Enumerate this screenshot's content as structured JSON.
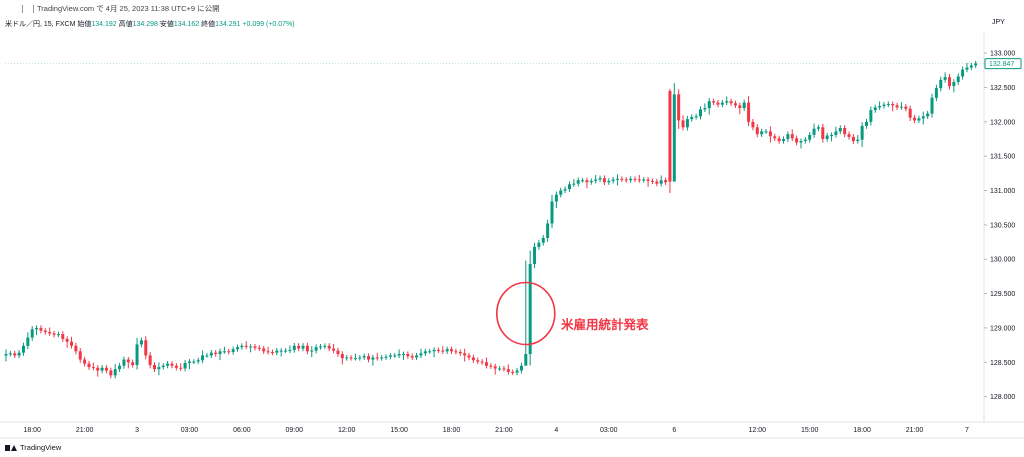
{
  "header": {
    "publish_text": "TradingView.com で 4月 25, 2023 11:38 UTC+9 に公開"
  },
  "legend": {
    "symbol": "米ドル／円, 15, FXCM",
    "open_label": "始値",
    "open": "134.192",
    "high_label": "高値",
    "high": "134.298",
    "low_label": "安値",
    "low": "134.162",
    "close_label": "終値",
    "close": "134.291",
    "change": "+0.099 (+0.07%)"
  },
  "currency": "JPY",
  "branding": {
    "name": "TradingView"
  },
  "annotation": {
    "text": "米雇用統計発表"
  },
  "colors": {
    "up": "#089981",
    "down": "#f23645",
    "annotation": "#f23645",
    "axis_text": "#131722",
    "grid": "#f0f3fa"
  },
  "chart_data": {
    "type": "candlestick",
    "title": "",
    "x_ticks": [
      "18:00",
      "21:00",
      "3",
      "03:00",
      "06:00",
      "09:00",
      "12:00",
      "15:00",
      "18:00",
      "21:00",
      "4",
      "03:00",
      "6",
      "12:00",
      "15:00",
      "18:00",
      "21:00",
      "7"
    ],
    "x_tick_bar_index": [
      6,
      18,
      30,
      42,
      54,
      66,
      78,
      90,
      102,
      114,
      126,
      138,
      153,
      172,
      184,
      196,
      208,
      220
    ],
    "y_ticks": [
      "128.000",
      "128.500",
      "129.000",
      "129.500",
      "130.000",
      "130.500",
      "131.000",
      "131.500",
      "132.000",
      "132.500",
      "133.000"
    ],
    "y_tick_values": [
      128.0,
      128.5,
      129.0,
      129.5,
      130.0,
      130.5,
      131.0,
      131.5,
      132.0,
      132.5,
      133.0
    ],
    "ylim": [
      127.66,
      133.22
    ],
    "last_price_label": "132.847",
    "last_price": 132.847,
    "grid": false,
    "close_series": [
      128.62,
      128.63,
      128.6,
      128.64,
      128.74,
      128.86,
      128.98,
      129.0,
      128.96,
      128.94,
      128.92,
      128.9,
      128.91,
      128.84,
      128.8,
      128.74,
      128.66,
      128.54,
      128.48,
      128.43,
      128.42,
      128.38,
      128.42,
      128.38,
      128.31,
      128.4,
      128.45,
      128.54,
      128.5,
      128.46,
      128.76,
      128.82,
      128.6,
      128.46,
      128.4,
      128.43,
      128.45,
      128.48,
      128.45,
      128.42,
      128.41,
      128.49,
      128.51,
      128.51,
      128.53,
      128.6,
      128.6,
      128.64,
      128.62,
      128.66,
      128.66,
      128.65,
      128.69,
      128.72,
      128.74,
      128.73,
      128.73,
      128.71,
      128.7,
      128.66,
      128.65,
      128.64,
      128.67,
      128.67,
      128.67,
      128.68,
      128.74,
      128.7,
      128.74,
      128.66,
      128.67,
      128.72,
      128.73,
      128.74,
      128.7,
      128.67,
      128.62,
      128.56,
      128.57,
      128.56,
      128.56,
      128.57,
      128.59,
      128.54,
      128.57,
      128.56,
      128.57,
      128.58,
      128.6,
      128.6,
      128.62,
      128.62,
      128.59,
      128.57,
      128.6,
      128.63,
      128.66,
      128.66,
      128.68,
      128.67,
      128.66,
      128.69,
      128.66,
      128.65,
      128.63,
      128.6,
      128.57,
      128.53,
      128.51,
      128.5,
      128.45,
      128.44,
      128.41,
      128.41,
      128.4,
      128.36,
      128.35,
      128.38,
      128.45,
      128.62,
      129.93,
      130.18,
      130.24,
      130.31,
      130.52,
      130.84,
      130.94,
      131.0,
      131.02,
      131.09,
      131.1,
      131.15,
      131.15,
      131.12,
      131.14,
      131.16,
      131.18,
      131.12,
      131.14,
      131.16,
      131.17,
      131.16,
      131.15,
      131.17,
      131.16,
      131.15,
      131.16,
      131.14,
      131.13,
      131.1,
      131.15,
      131.12,
      131.13,
      132.4,
      132.02,
      131.92,
      132.04,
      132.07,
      132.08,
      132.18,
      132.2,
      132.3,
      132.28,
      132.25,
      132.28,
      132.3,
      132.27,
      132.24,
      132.2,
      132.28,
      132.0,
      131.92,
      131.82,
      131.86,
      131.86,
      131.79,
      131.76,
      131.72,
      131.75,
      131.82,
      131.76,
      131.7,
      131.72,
      131.74,
      131.81,
      131.9,
      131.92,
      131.75,
      131.8,
      131.81,
      131.86,
      131.91,
      131.82,
      131.78,
      131.72,
      131.74,
      131.94,
      132.0,
      132.17,
      132.21,
      132.23,
      132.25,
      132.26,
      132.24,
      132.21,
      132.22,
      132.19,
      132.06,
      132.02,
      132.05,
      132.08,
      132.12,
      132.35,
      132.49,
      132.61,
      132.65,
      132.52,
      132.58,
      132.66,
      132.76,
      132.79,
      132.82,
      132.85
    ]
  }
}
